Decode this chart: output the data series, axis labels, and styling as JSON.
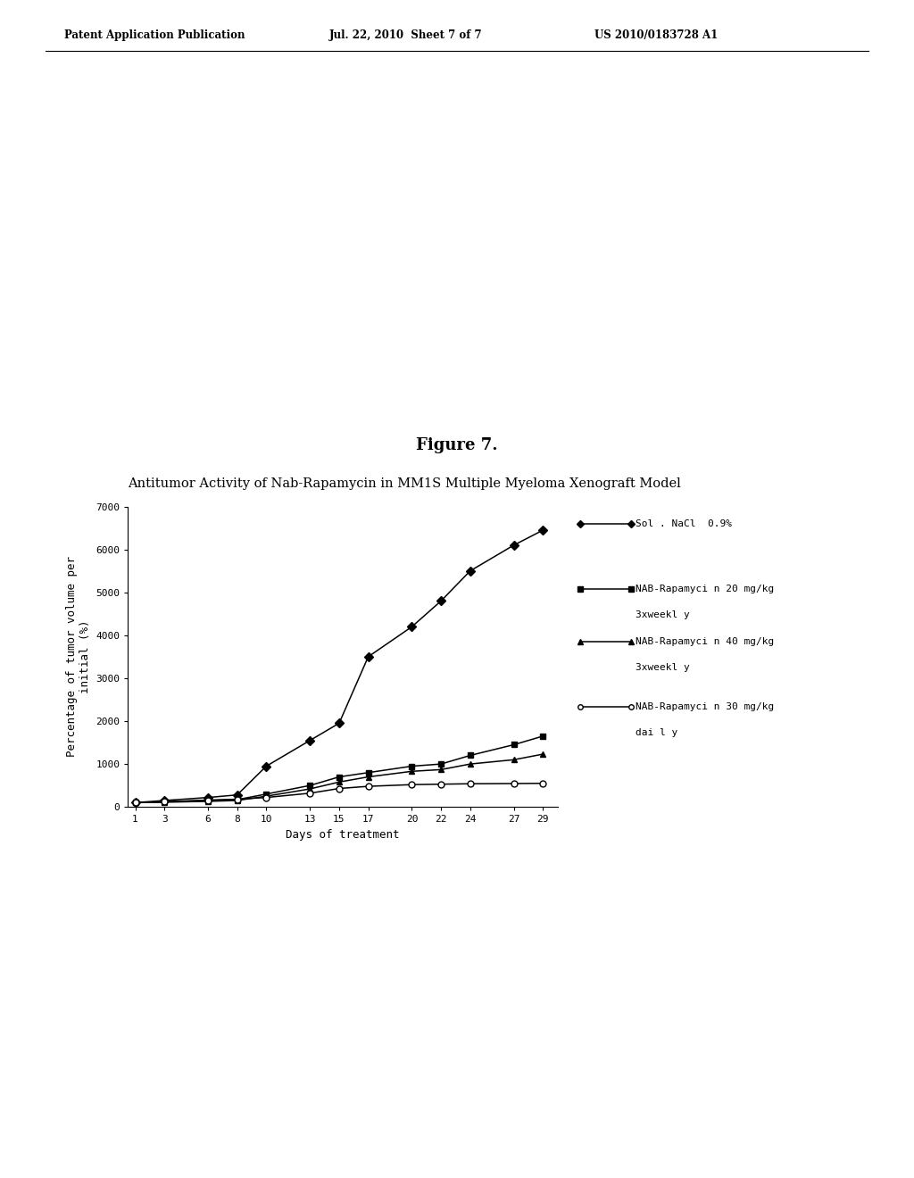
{
  "figure_label": "Figure 7.",
  "chart_title": "Antitumor Activity of Nab-Rapamycin in MM1S Multiple Myeloma Xenograft Model",
  "xlabel": "Days of treatment",
  "ylabel": "Percentage of tumor volume per\ninitial (%)",
  "x_ticks": [
    1,
    3,
    6,
    8,
    10,
    13,
    15,
    17,
    20,
    22,
    24,
    27,
    29
  ],
  "ylim": [
    0,
    7000
  ],
  "yticks": [
    0,
    1000,
    2000,
    3000,
    4000,
    5000,
    6000,
    7000
  ],
  "header_left": "Patent Application Publication",
  "header_mid": "Jul. 22, 2010  Sheet 7 of 7",
  "header_right": "US 2010/0183728 A1",
  "series": [
    {
      "label": "Sol. NaCl 0.9%",
      "marker": "D",
      "marker_fill": "black",
      "line_style": "-",
      "x": [
        1,
        3,
        6,
        8,
        10,
        13,
        15,
        17,
        20,
        22,
        24,
        27,
        29
      ],
      "y": [
        100,
        150,
        220,
        280,
        950,
        1550,
        1950,
        3500,
        4200,
        4800,
        5500,
        6100,
        6450
      ]
    },
    {
      "label": "NAB-Rapamycin 20 mg/kg\n3xweekly",
      "marker": "s",
      "marker_fill": "black",
      "line_style": "-",
      "x": [
        1,
        3,
        6,
        8,
        10,
        13,
        15,
        17,
        20,
        22,
        24,
        27,
        29
      ],
      "y": [
        100,
        120,
        150,
        170,
        300,
        500,
        700,
        800,
        950,
        1000,
        1200,
        1450,
        1650
      ]
    },
    {
      "label": "NAB-Rapamycin 40 mg/kg\n3xweekly",
      "marker": "^",
      "marker_fill": "black",
      "line_style": "-",
      "x": [
        1,
        3,
        6,
        8,
        10,
        13,
        15,
        17,
        20,
        22,
        24,
        27,
        29
      ],
      "y": [
        100,
        110,
        130,
        150,
        250,
        420,
        580,
        700,
        830,
        870,
        1000,
        1100,
        1230
      ]
    },
    {
      "label": "NAB-Rapamycin 30 mg/kg\ndaily",
      "marker": "o",
      "marker_fill": "white",
      "line_style": "-",
      "x": [
        1,
        3,
        6,
        8,
        10,
        13,
        15,
        17,
        20,
        22,
        24,
        27,
        29
      ],
      "y": [
        100,
        120,
        160,
        180,
        220,
        320,
        430,
        480,
        520,
        530,
        540,
        545,
        550
      ]
    }
  ],
  "background_color": "#ffffff",
  "legend_fontsize": 8,
  "title_fontsize": 10.5,
  "axis_label_fontsize": 9,
  "tick_fontsize": 8,
  "figure_label_fontsize": 13,
  "header_fontsize": 8.5
}
